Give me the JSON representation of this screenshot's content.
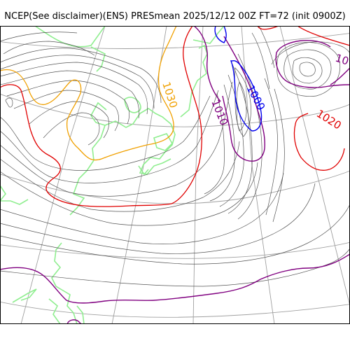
{
  "title": "NCEP(See disclaimer)(ENS) PRESmean 2025/12/12 00Z FT=72 (init 0900Z)",
  "map": {
    "contour_labels": [
      {
        "id": "1000",
        "text": "1000",
        "color": "#0000ee"
      },
      {
        "id": "1010",
        "text": "1010",
        "color": "#800080"
      },
      {
        "id": "1020",
        "text": "1020",
        "color": "#e00000"
      },
      {
        "id": "1030",
        "text": "1030",
        "color": "#f0a000"
      },
      {
        "id": "10",
        "text": "10",
        "color": "#800080"
      }
    ],
    "colors": {
      "thin_isobar": "#555555",
      "coastline": "#90ee90",
      "graticule": "#a0a0a0",
      "isobar_1000": "#0000ee",
      "isobar_1010": "#800080",
      "isobar_1020": "#e00000",
      "isobar_1030": "#f0a000"
    }
  }
}
